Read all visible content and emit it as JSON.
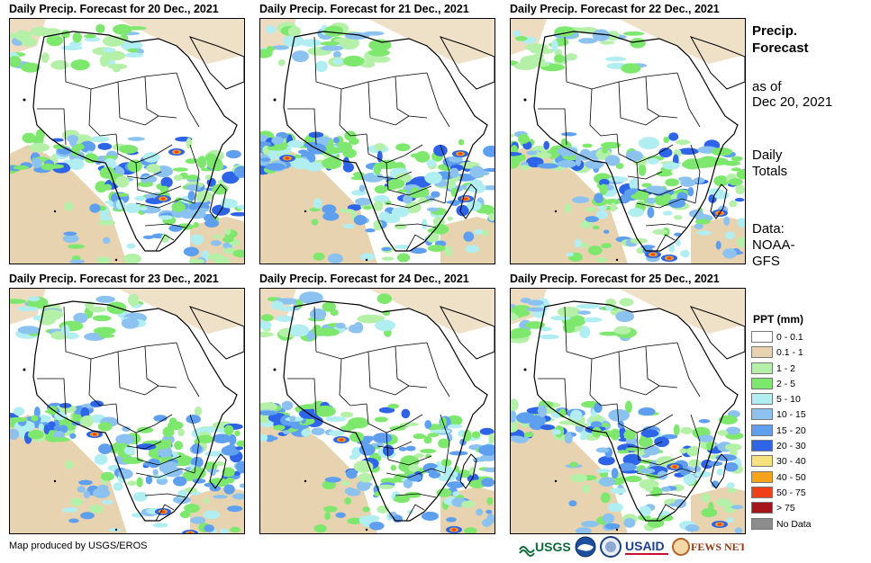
{
  "panels": [
    {
      "title": "Daily Precip. Forecast for 20 Dec., 2021"
    },
    {
      "title": "Daily Precip. Forecast for 21 Dec., 2021"
    },
    {
      "title": "Daily Precip. Forecast for 22 Dec., 2021"
    },
    {
      "title": "Daily Precip. Forecast for 23 Dec., 2021"
    },
    {
      "title": "Daily Precip. Forecast for 24 Dec., 2021"
    },
    {
      "title": "Daily Precip. Forecast for 25 Dec., 2021"
    }
  ],
  "side": {
    "title_line1": "Precip.",
    "title_line2": "Forecast",
    "asof_line1": "as of",
    "asof_line2": "Dec 20, 2021",
    "totals_line1": "Daily",
    "totals_line2": "Totals",
    "data_line1": "Data:",
    "data_line2": "NOAA-",
    "data_line3": "GFS"
  },
  "legend": {
    "title": "PPT (mm)",
    "items": [
      {
        "label": "0 - 0.1",
        "color": "#ffffff"
      },
      {
        "label": "0.1 - 1",
        "color": "#e8d3b0"
      },
      {
        "label": "1 - 2",
        "color": "#b5f0a8"
      },
      {
        "label": "2 - 5",
        "color": "#7ee86e"
      },
      {
        "label": "5 - 10",
        "color": "#b0eef2"
      },
      {
        "label": "10 - 15",
        "color": "#8cc2ef"
      },
      {
        "label": "15 - 20",
        "color": "#5e9ff0"
      },
      {
        "label": "20 - 30",
        "color": "#2d64e8"
      },
      {
        "label": "30 - 40",
        "color": "#f6e27a"
      },
      {
        "label": "40 - 50",
        "color": "#f7a21b"
      },
      {
        "label": "50 - 75",
        "color": "#f0401a"
      },
      {
        "label": "> 75",
        "color": "#a4161a"
      },
      {
        "label": "No Data",
        "color": "#8c8c8c"
      }
    ]
  },
  "credit": "Map produced by USGS/EROS",
  "logos": {
    "usgs": "USGS",
    "noaa": "NOAA",
    "usaid": "USAID",
    "fewsnet": "FEWS NET"
  }
}
